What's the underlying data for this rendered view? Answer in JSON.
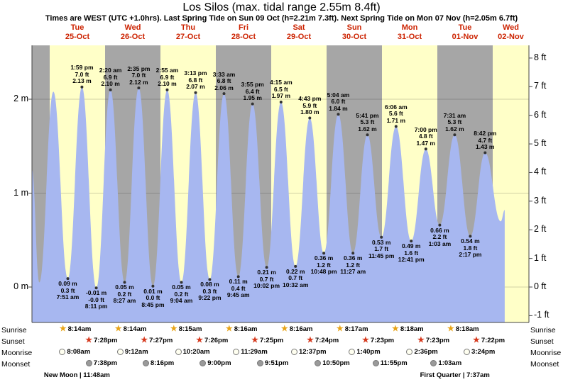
{
  "title": "Los Silos (max. tidal range 2.55m 8.4ft)",
  "subtitle": "Times are WEST (UTC +1.0hrs). Last Spring Tide on Sun 09 Oct (h=2.21m 7.3ft). Next Spring Tide on Mon 07 Nov (h=2.05m 6.7ft)",
  "colors": {
    "background": "#ffffff",
    "band_yellow": "#ffffc8",
    "band_gray": "#a6a6a6",
    "tide_fill": "#a7b7f0",
    "day_label_red": "#cc2200",
    "axis_line": "#444444",
    "grid_line": "rgba(0,0,0,0.18)",
    "marker_dot": "#333333",
    "sunrise_star": "#e8a417",
    "sunset_star": "#d63a1e",
    "moonrise_fill": "#fffff0",
    "moonset_fill": "#9a9a9a"
  },
  "icons": {
    "star": "★"
  },
  "chart_data": {
    "type": "area",
    "title": "Los Silos tide heights",
    "ylabel_left": "meters",
    "ylabel_right": "feet",
    "ylim_m": [
      -0.4,
      2.6
    ],
    "grid": true,
    "days": [
      {
        "name": "Tue",
        "date": "25-Oct"
      },
      {
        "name": "Wed",
        "date": "26-Oct"
      },
      {
        "name": "Thu",
        "date": "27-Oct"
      },
      {
        "name": "Fri",
        "date": "28-Oct"
      },
      {
        "name": "Sat",
        "date": "29-Oct"
      },
      {
        "name": "Sun",
        "date": "30-Oct"
      },
      {
        "name": "Mon",
        "date": "31-Oct"
      },
      {
        "name": "Tue",
        "date": "01-Nov"
      },
      {
        "name": "Wed",
        "date": "02-Nov"
      }
    ],
    "m_ticks": [
      {
        "v": 0,
        "label": "0 m"
      },
      {
        "v": 1,
        "label": "1 m"
      },
      {
        "v": 2,
        "label": "2 m"
      }
    ],
    "ft_ticks": [
      {
        "v": -1,
        "label": "-1 ft"
      },
      {
        "v": 0,
        "label": "0 ft"
      },
      {
        "v": 1,
        "label": "1 ft"
      },
      {
        "v": 2,
        "label": "2 ft"
      },
      {
        "v": 3,
        "label": "3 ft"
      },
      {
        "v": 4,
        "label": "4 ft"
      },
      {
        "v": 5,
        "label": "5 ft"
      },
      {
        "v": 6,
        "label": "6 ft"
      },
      {
        "v": 7,
        "label": "7 ft"
      },
      {
        "v": 8,
        "label": "8 ft"
      }
    ],
    "tide_events": [
      {
        "type": "low",
        "day": 0,
        "hour": 7.85,
        "time": "7:51 am",
        "height_m": 0.09,
        "m_label": "0.09 m",
        "ft_label": "0.3 ft"
      },
      {
        "type": "high",
        "day": 0,
        "hour": 13.983,
        "time": "1:59 pm",
        "height_m": 2.13,
        "m_label": "2.13 m",
        "ft_label": "7.0 ft"
      },
      {
        "type": "low",
        "day": 0,
        "hour": 20.183,
        "time": "8:11 pm",
        "height_m": -0.01,
        "m_label": "-0.01 m",
        "ft_label": "-0.0 ft"
      },
      {
        "type": "high",
        "day": 1,
        "hour": 2.333,
        "time": "2:20 am",
        "height_m": 2.1,
        "m_label": "2.10 m",
        "ft_label": "6.9 ft"
      },
      {
        "type": "low",
        "day": 1,
        "hour": 8.45,
        "time": "8:27 am",
        "height_m": 0.05,
        "m_label": "0.05 m",
        "ft_label": "0.2 ft"
      },
      {
        "type": "high",
        "day": 1,
        "hour": 14.583,
        "time": "2:35 pm",
        "height_m": 2.12,
        "m_label": "2.12 m",
        "ft_label": "7.0 ft"
      },
      {
        "type": "low",
        "day": 1,
        "hour": 20.75,
        "time": "8:45 pm",
        "height_m": 0.01,
        "m_label": "0.01 m",
        "ft_label": "0.0 ft"
      },
      {
        "type": "high",
        "day": 2,
        "hour": 2.917,
        "time": "2:55 am",
        "height_m": 2.1,
        "m_label": "2.10 m",
        "ft_label": "6.9 ft"
      },
      {
        "type": "low",
        "day": 2,
        "hour": 9.067,
        "time": "9:04 am",
        "height_m": 0.05,
        "m_label": "0.05 m",
        "ft_label": "0.2 ft"
      },
      {
        "type": "high",
        "day": 2,
        "hour": 15.217,
        "time": "3:13 pm",
        "height_m": 2.07,
        "m_label": "2.07 m",
        "ft_label": "6.8 ft"
      },
      {
        "type": "low",
        "day": 2,
        "hour": 21.367,
        "time": "9:22 pm",
        "height_m": 0.08,
        "m_label": "0.08 m",
        "ft_label": "0.3 ft"
      },
      {
        "type": "high",
        "day": 3,
        "hour": 3.55,
        "time": "3:33 am",
        "height_m": 2.06,
        "m_label": "2.06 m",
        "ft_label": "6.8 ft"
      },
      {
        "type": "low",
        "day": 3,
        "hour": 9.75,
        "time": "9:45 am",
        "height_m": 0.11,
        "m_label": "0.11 m",
        "ft_label": "0.4 ft"
      },
      {
        "type": "high",
        "day": 3,
        "hour": 15.917,
        "time": "3:55 pm",
        "height_m": 1.95,
        "m_label": "1.95 m",
        "ft_label": "6.4 ft"
      },
      {
        "type": "low",
        "day": 3,
        "hour": 22.033,
        "time": "10:02 pm",
        "height_m": 0.21,
        "m_label": "0.21 m",
        "ft_label": "0.7 ft"
      },
      {
        "type": "high",
        "day": 4,
        "hour": 4.25,
        "time": "4:15 am",
        "height_m": 1.97,
        "m_label": "1.97 m",
        "ft_label": "6.5 ft"
      },
      {
        "type": "low",
        "day": 4,
        "hour": 10.533,
        "time": "10:32 am",
        "height_m": 0.22,
        "m_label": "0.22 m",
        "ft_label": "0.7 ft"
      },
      {
        "type": "high",
        "day": 4,
        "hour": 16.717,
        "time": "4:43 pm",
        "height_m": 1.8,
        "m_label": "1.80 m",
        "ft_label": "5.9 ft"
      },
      {
        "type": "low",
        "day": 4,
        "hour": 22.8,
        "time": "10:48 pm",
        "height_m": 0.36,
        "m_label": "0.36 m",
        "ft_label": "1.2 ft"
      },
      {
        "type": "high",
        "day": 5,
        "hour": 5.067,
        "time": "5:04 am",
        "height_m": 1.84,
        "m_label": "1.84 m",
        "ft_label": "6.0 ft"
      },
      {
        "type": "low",
        "day": 5,
        "hour": 11.45,
        "time": "11:27 am",
        "height_m": 0.36,
        "m_label": "0.36 m",
        "ft_label": "1.2 ft"
      },
      {
        "type": "high",
        "day": 5,
        "hour": 17.683,
        "time": "5:41 pm",
        "height_m": 1.62,
        "m_label": "1.62 m",
        "ft_label": "5.3 ft"
      },
      {
        "type": "low",
        "day": 5,
        "hour": 23.75,
        "time": "11:45 pm",
        "height_m": 0.53,
        "m_label": "0.53 m",
        "ft_label": "1.7 ft"
      },
      {
        "type": "high",
        "day": 6,
        "hour": 6.1,
        "time": "6:06 am",
        "height_m": 1.71,
        "m_label": "1.71 m",
        "ft_label": "5.6 ft"
      },
      {
        "type": "low",
        "day": 6,
        "hour": 12.683,
        "time": "12:41 pm",
        "height_m": 0.49,
        "m_label": "0.49 m",
        "ft_label": "1.6 ft"
      },
      {
        "type": "high",
        "day": 6,
        "hour": 19.0,
        "time": "7:00 pm",
        "height_m": 1.47,
        "m_label": "1.47 m",
        "ft_label": "4.8 ft"
      },
      {
        "type": "low",
        "day": 7,
        "hour": 1.05,
        "time": "1:03 am",
        "height_m": 0.66,
        "m_label": "0.66 m",
        "ft_label": "2.2 ft"
      },
      {
        "type": "high",
        "day": 7,
        "hour": 7.517,
        "time": "7:31 am",
        "height_m": 1.62,
        "m_label": "1.62 m",
        "ft_label": "5.3 ft"
      },
      {
        "type": "low",
        "day": 7,
        "hour": 14.283,
        "time": "2:17 pm",
        "height_m": 0.54,
        "m_label": "0.54 m",
        "ft_label": "1.8 ft"
      },
      {
        "type": "high",
        "day": 7,
        "hour": 20.7,
        "time": "8:42 pm",
        "height_m": 1.43,
        "m_label": "1.43 m",
        "ft_label": "4.7 ft"
      }
    ],
    "curve_edge_pre": [
      {
        "t": -7.7,
        "h": 1.25
      },
      {
        "t": -4.5,
        "h": 0.05
      },
      {
        "t": 1.6,
        "h": 2.08
      }
    ],
    "curve_edge_post": [
      {
        "t": 195.5,
        "h": 0.7
      },
      {
        "t": 197.2,
        "h": 0.82
      }
    ]
  },
  "astronomy": {
    "rows": [
      {
        "label": "Sunrise",
        "icon": "sunrise-star-icon",
        "events": [
          {
            "day": 0,
            "hour": 8.23,
            "time": "8:14am"
          },
          {
            "day": 1,
            "hour": 8.23,
            "time": "8:14am"
          },
          {
            "day": 2,
            "hour": 8.25,
            "time": "8:15am"
          },
          {
            "day": 3,
            "hour": 8.27,
            "time": "8:16am"
          },
          {
            "day": 4,
            "hour": 8.27,
            "time": "8:16am"
          },
          {
            "day": 5,
            "hour": 8.28,
            "time": "8:17am"
          },
          {
            "day": 6,
            "hour": 8.3,
            "time": "8:18am"
          },
          {
            "day": 7,
            "hour": 8.3,
            "time": "8:18am"
          }
        ]
      },
      {
        "label": "Sunset",
        "icon": "sunset-star-icon",
        "events": [
          {
            "day": 0,
            "hour": 19.47,
            "time": "7:28pm"
          },
          {
            "day": 1,
            "hour": 19.45,
            "time": "7:27pm"
          },
          {
            "day": 2,
            "hour": 19.43,
            "time": "7:26pm"
          },
          {
            "day": 3,
            "hour": 19.42,
            "time": "7:25pm"
          },
          {
            "day": 4,
            "hour": 19.4,
            "time": "7:24pm"
          },
          {
            "day": 5,
            "hour": 19.38,
            "time": "7:23pm"
          },
          {
            "day": 6,
            "hour": 19.38,
            "time": "7:23pm"
          },
          {
            "day": 7,
            "hour": 19.37,
            "time": "7:22pm"
          }
        ]
      },
      {
        "label": "Moonrise",
        "icon": "moonrise-circle-icon",
        "events": [
          {
            "day": 0,
            "hour": 8.13,
            "time": "8:08am"
          },
          {
            "day": 1,
            "hour": 9.2,
            "time": "9:12am"
          },
          {
            "day": 2,
            "hour": 10.33,
            "time": "10:20am"
          },
          {
            "day": 3,
            "hour": 11.48,
            "time": "11:29am"
          },
          {
            "day": 4,
            "hour": 12.62,
            "time": "12:37pm"
          },
          {
            "day": 5,
            "hour": 13.67,
            "time": "1:40pm"
          },
          {
            "day": 6,
            "hour": 14.6,
            "time": "2:36pm"
          },
          {
            "day": 7,
            "hour": 15.4,
            "time": "3:24pm"
          }
        ]
      },
      {
        "label": "Moonset",
        "icon": "moonset-circle-icon",
        "events": [
          {
            "day": 0,
            "hour": 19.63,
            "time": "7:38pm"
          },
          {
            "day": 1,
            "hour": 20.27,
            "time": "8:16pm"
          },
          {
            "day": 2,
            "hour": 21.0,
            "time": "9:00pm"
          },
          {
            "day": 3,
            "hour": 21.85,
            "time": "9:51pm"
          },
          {
            "day": 4,
            "hour": 22.83,
            "time": "10:50pm"
          },
          {
            "day": 5,
            "hour": 23.92,
            "time": "11:55pm"
          },
          {
            "day": 7,
            "hour": 1.05,
            "time": "1:03am"
          }
        ]
      }
    ],
    "phases": [
      {
        "day": 0,
        "hour": 11.8,
        "text": "New Moon | 11:48am"
      },
      {
        "day": 7,
        "hour": 7.62,
        "text": "First Quarter | 7:37am"
      }
    ]
  }
}
